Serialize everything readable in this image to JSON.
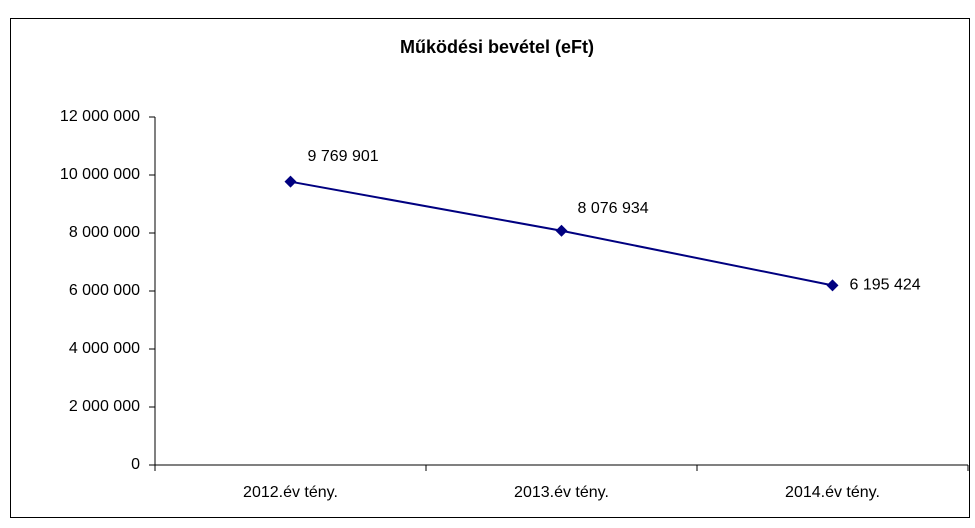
{
  "chart_data": {
    "type": "line",
    "title": "Működési bevétel (eFt)",
    "categories": [
      "2012.év tény.",
      "2013.év tény.",
      "2014.év tény."
    ],
    "series": [
      {
        "color": "#000080",
        "values": [
          9769901,
          8076934,
          6195424
        ],
        "value_labels": [
          "9 769 901",
          "8 076 934",
          "6 195 424"
        ]
      }
    ],
    "ylim": [
      0,
      12000000
    ],
    "yticks": [
      0,
      {
        "value": 2000000,
        "label": "2 000 000"
      },
      {
        "value": 4000000,
        "label": "4 000 000"
      },
      {
        "value": 6000000,
        "label": "6 000 000"
      },
      {
        "value": 8000000,
        "label": "8 000 000"
      },
      {
        "value": 10000000,
        "label": "10 000 000"
      },
      {
        "value": 12000000,
        "label": "12 000 000"
      }
    ],
    "grid": false
  }
}
